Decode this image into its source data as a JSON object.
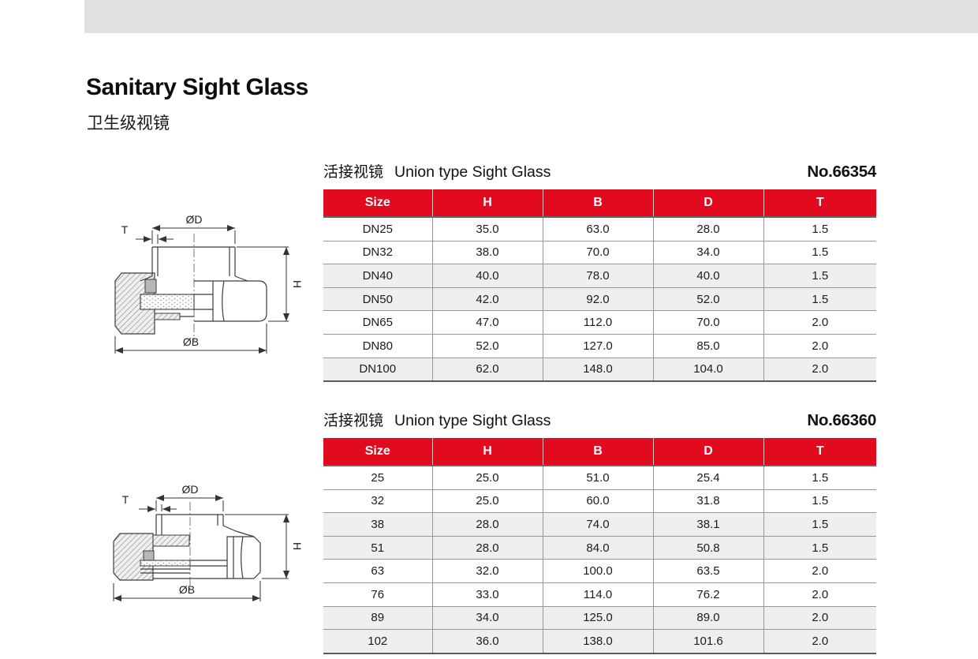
{
  "page": {
    "title": "Sanitary Sight Glass",
    "subtitle_cn": "卫生级视镜"
  },
  "tables": [
    {
      "title_cn": "活接视镜",
      "title_en": "Union type Sight Glass",
      "model_no": "No.66354",
      "columns": [
        "Size",
        "H",
        "B",
        "D",
        "T"
      ],
      "rows": [
        [
          "DN25",
          "35.0",
          "63.0",
          "28.0",
          "1.5"
        ],
        [
          "DN32",
          "38.0",
          "70.0",
          "34.0",
          "1.5"
        ],
        [
          "DN40",
          "40.0",
          "78.0",
          "40.0",
          "1.5"
        ],
        [
          "DN50",
          "42.0",
          "92.0",
          "52.0",
          "1.5"
        ],
        [
          "DN65",
          "47.0",
          "112.0",
          "70.0",
          "2.0"
        ],
        [
          "DN80",
          "52.0",
          "127.0",
          "85.0",
          "2.0"
        ],
        [
          "DN100",
          "62.0",
          "148.0",
          "104.0",
          "2.0"
        ]
      ],
      "shaded_rows": [
        2,
        3,
        6
      ]
    },
    {
      "title_cn": "活接视镜",
      "title_en": "Union type Sight Glass",
      "model_no": "No.66360",
      "columns": [
        "Size",
        "H",
        "B",
        "D",
        "T"
      ],
      "rows": [
        [
          "25",
          "25.0",
          "51.0",
          "25.4",
          "1.5"
        ],
        [
          "32",
          "25.0",
          "60.0",
          "31.8",
          "1.5"
        ],
        [
          "38",
          "28.0",
          "74.0",
          "38.1",
          "1.5"
        ],
        [
          "51",
          "28.0",
          "84.0",
          "50.8",
          "1.5"
        ],
        [
          "63",
          "32.0",
          "100.0",
          "63.5",
          "2.0"
        ],
        [
          "76",
          "33.0",
          "114.0",
          "76.2",
          "2.0"
        ],
        [
          "89",
          "34.0",
          "125.0",
          "89.0",
          "2.0"
        ],
        [
          "102",
          "36.0",
          "138.0",
          "101.6",
          "2.0"
        ]
      ],
      "shaded_rows": [
        2,
        3,
        6,
        7
      ]
    }
  ],
  "drawings": [
    {
      "dim_top": "ØD",
      "dim_left": "T",
      "dim_right": "H",
      "dim_bottom": "ØB"
    },
    {
      "dim_top": "ØD",
      "dim_left": "T",
      "dim_right": "H",
      "dim_bottom": "ØB"
    }
  ],
  "colors": {
    "header_red": "#e10a1e",
    "row_alt": "#efefef",
    "top_bar": "#e0e0e0"
  }
}
